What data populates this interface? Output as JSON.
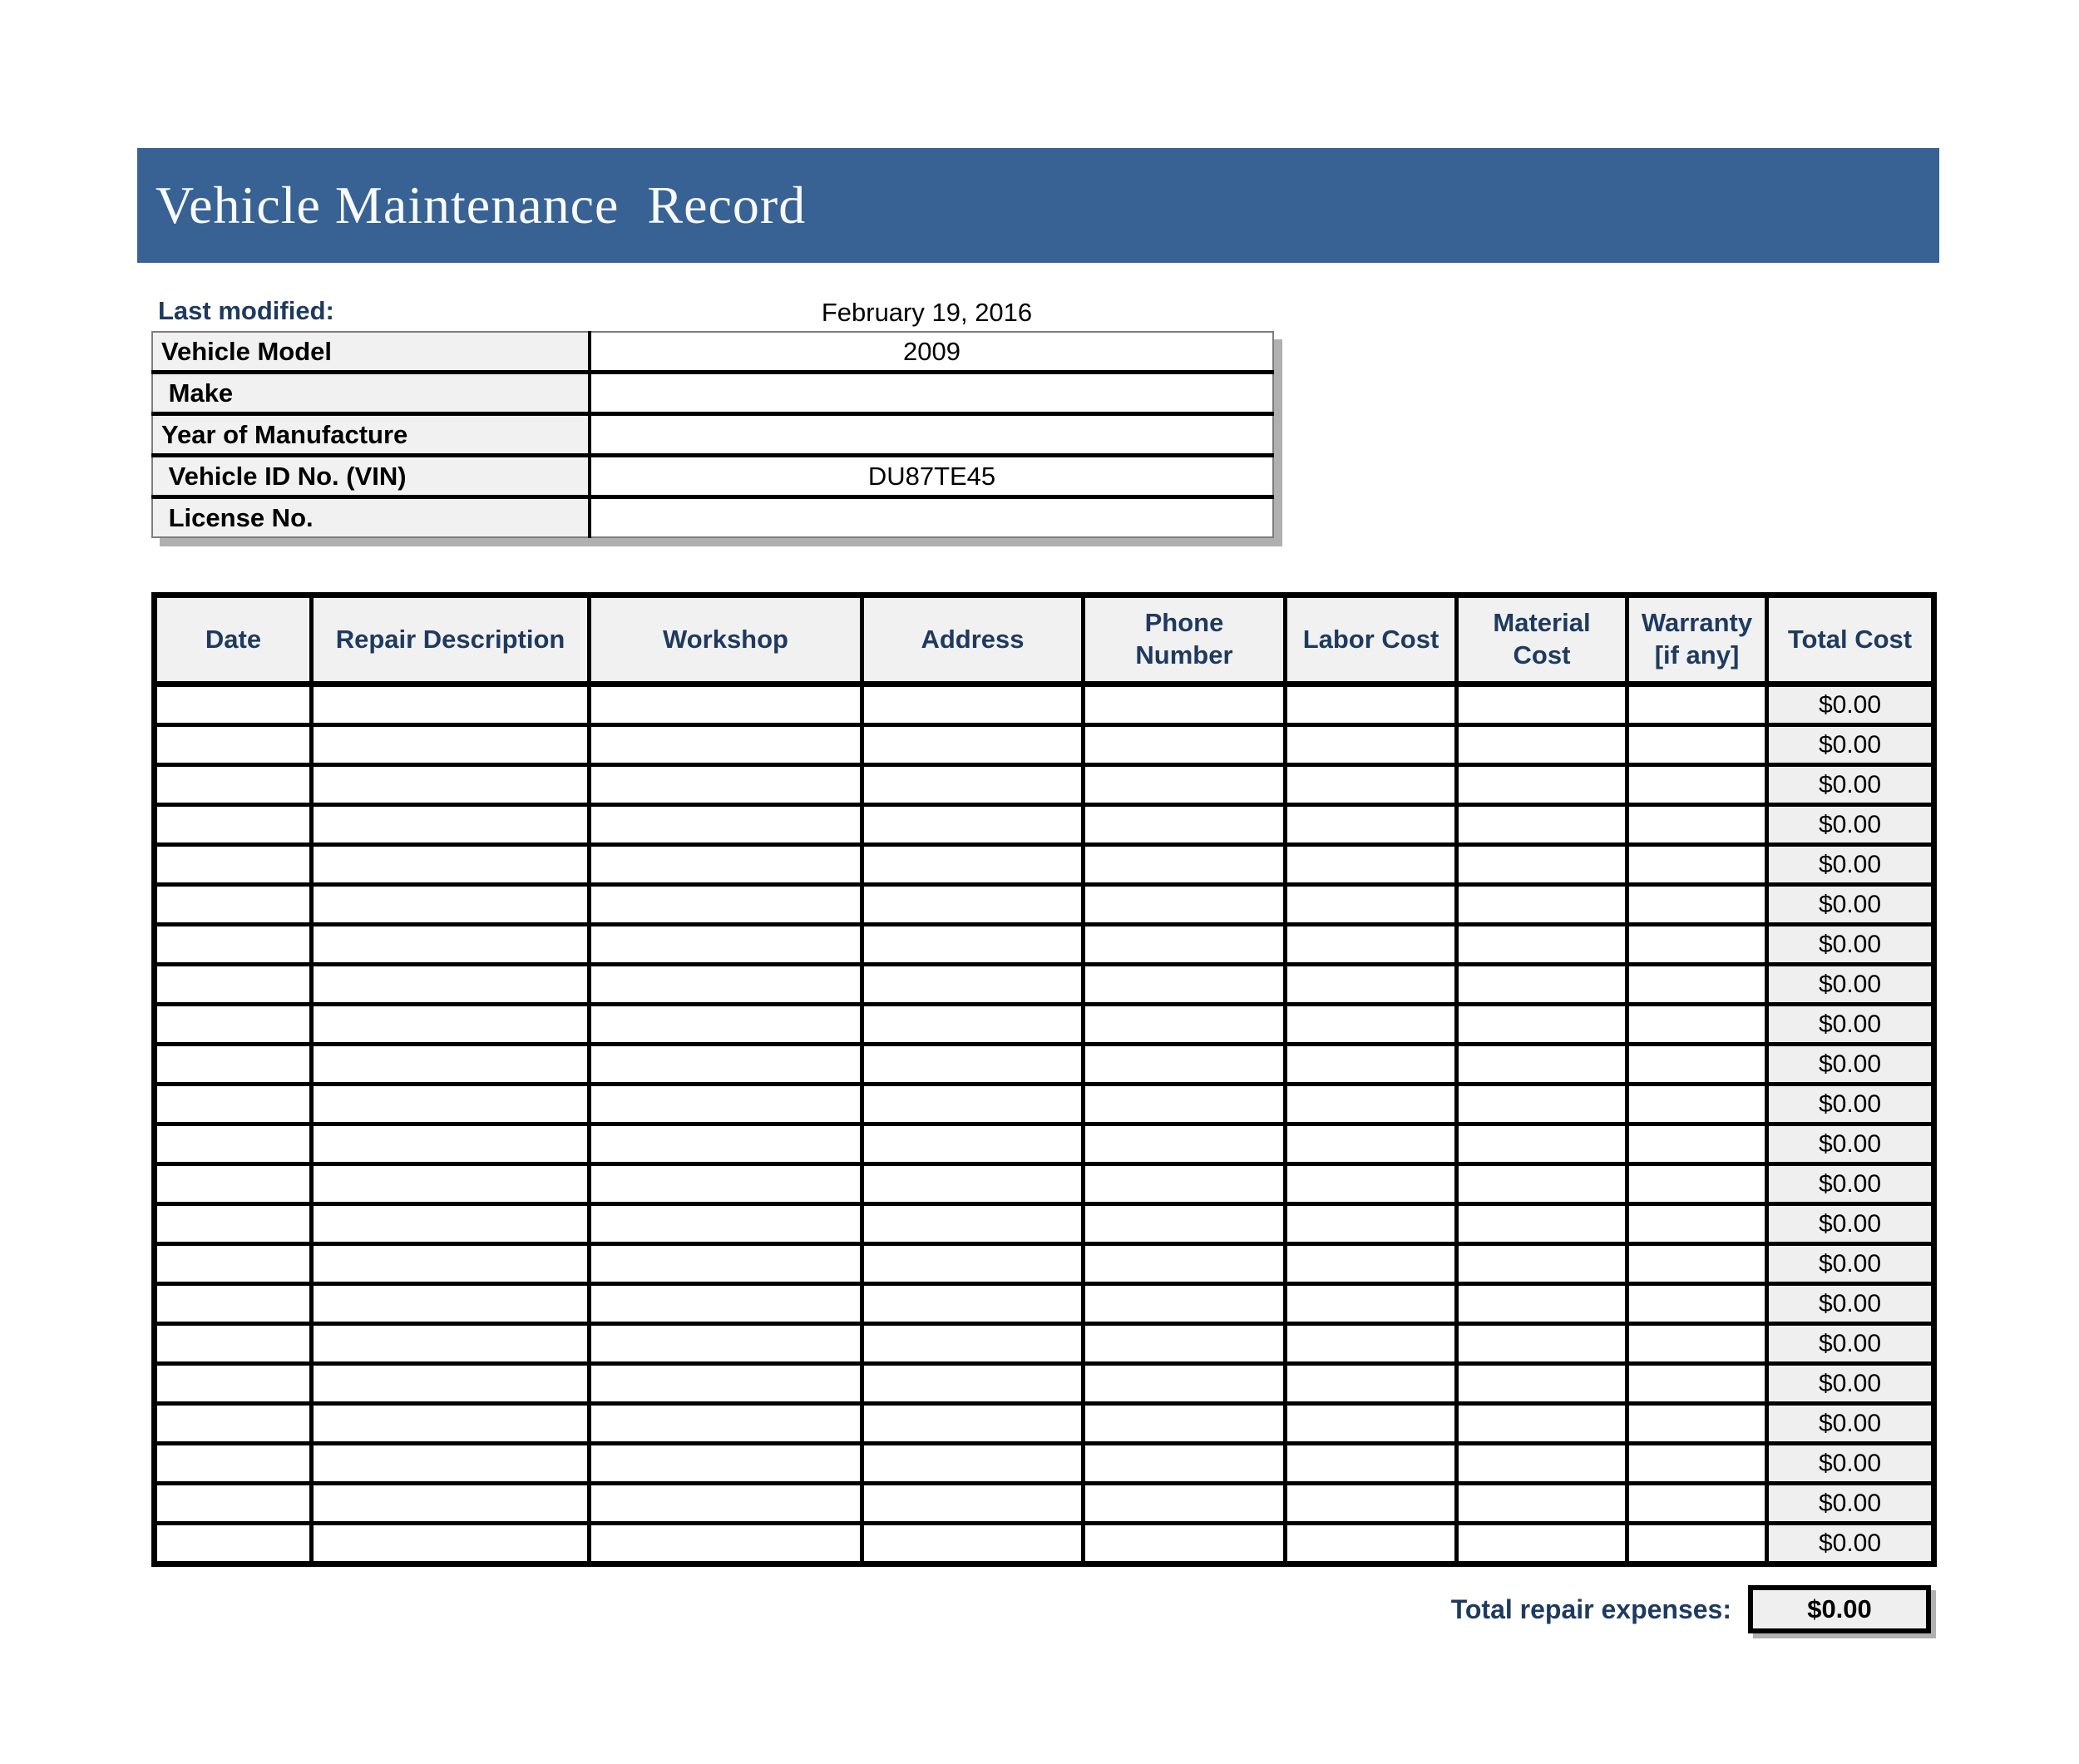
{
  "header": {
    "title": "Vehicle Maintenance  Record"
  },
  "meta": {
    "last_modified_label": "Last modified:",
    "last_modified_value": "February 19, 2016",
    "fields": [
      {
        "label": "Vehicle Model",
        "value": "2009"
      },
      {
        "label": " Make",
        "value": ""
      },
      {
        "label": "Year of Manufacture",
        "value": ""
      },
      {
        "label": " Vehicle ID No. (VIN)",
        "value": "DU87TE45"
      },
      {
        "label": " License No.",
        "value": ""
      }
    ]
  },
  "log_table": {
    "columns": [
      "Date",
      "Repair Description",
      "Workshop",
      "Address",
      "Phone\nNumber",
      "Labor Cost",
      "Material\nCost",
      "Warranty\n[if any]",
      "Total Cost"
    ],
    "rows": [
      [
        "",
        "",
        "",
        "",
        "",
        "",
        "",
        "",
        "$0.00"
      ],
      [
        "",
        "",
        "",
        "",
        "",
        "",
        "",
        "",
        "$0.00"
      ],
      [
        "",
        "",
        "",
        "",
        "",
        "",
        "",
        "",
        "$0.00"
      ],
      [
        "",
        "",
        "",
        "",
        "",
        "",
        "",
        "",
        "$0.00"
      ],
      [
        "",
        "",
        "",
        "",
        "",
        "",
        "",
        "",
        "$0.00"
      ],
      [
        "",
        "",
        "",
        "",
        "",
        "",
        "",
        "",
        "$0.00"
      ],
      [
        "",
        "",
        "",
        "",
        "",
        "",
        "",
        "",
        "$0.00"
      ],
      [
        "",
        "",
        "",
        "",
        "",
        "",
        "",
        "",
        "$0.00"
      ],
      [
        "",
        "",
        "",
        "",
        "",
        "",
        "",
        "",
        "$0.00"
      ],
      [
        "",
        "",
        "",
        "",
        "",
        "",
        "",
        "",
        "$0.00"
      ],
      [
        "",
        "",
        "",
        "",
        "",
        "",
        "",
        "",
        "$0.00"
      ],
      [
        "",
        "",
        "",
        "",
        "",
        "",
        "",
        "",
        "$0.00"
      ],
      [
        "",
        "",
        "",
        "",
        "",
        "",
        "",
        "",
        "$0.00"
      ],
      [
        "",
        "",
        "",
        "",
        "",
        "",
        "",
        "",
        "$0.00"
      ],
      [
        "",
        "",
        "",
        "",
        "",
        "",
        "",
        "",
        "$0.00"
      ],
      [
        "",
        "",
        "",
        "",
        "",
        "",
        "",
        "",
        "$0.00"
      ],
      [
        "",
        "",
        "",
        "",
        "",
        "",
        "",
        "",
        "$0.00"
      ],
      [
        "",
        "",
        "",
        "",
        "",
        "",
        "",
        "",
        "$0.00"
      ],
      [
        "",
        "",
        "",
        "",
        "",
        "",
        "",
        "",
        "$0.00"
      ],
      [
        "",
        "",
        "",
        "",
        "",
        "",
        "",
        "",
        "$0.00"
      ],
      [
        "",
        "",
        "",
        "",
        "",
        "",
        "",
        "",
        "$0.00"
      ],
      [
        "",
        "",
        "",
        "",
        "",
        "",
        "",
        "",
        "$0.00"
      ]
    ]
  },
  "summary": {
    "label": "Total repair expenses:",
    "value": "$0.00"
  },
  "colors": {
    "banner_blue": "#386293",
    "heading_navy": "#1e3a5f",
    "header_fill": "#f1f1f1",
    "total_fill": "#efefef"
  }
}
